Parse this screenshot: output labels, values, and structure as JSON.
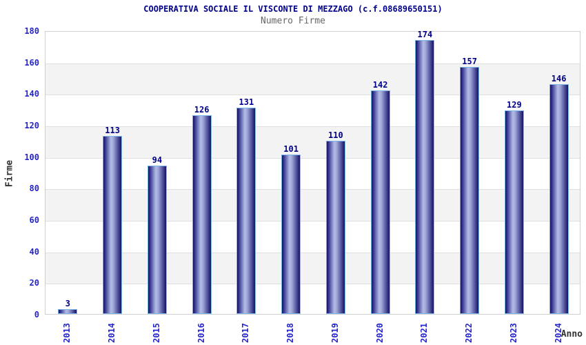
{
  "header": {
    "title": "COOPERATIVA SOCIALE IL VISCONTE DI MEZZAGO (c.f.08689650151)",
    "subtitle": "Numero Firme"
  },
  "chart_data": {
    "type": "bar",
    "title": "COOPERATIVA SOCIALE IL VISCONTE DI MEZZAGO (c.f.08689650151)",
    "subtitle": "Numero Firme",
    "xlabel": "Anno",
    "ylabel": "Firme",
    "categories": [
      "2013",
      "2014",
      "2015",
      "2016",
      "2017",
      "2018",
      "2019",
      "2020",
      "2021",
      "2022",
      "2023",
      "2024"
    ],
    "values": [
      3,
      113,
      94,
      126,
      131,
      101,
      110,
      142,
      174,
      157,
      129,
      146
    ],
    "ylim": [
      0,
      180
    ],
    "ytick_step": 20,
    "grid": "horizontal-bands",
    "legend": "none",
    "colors": {
      "title_text": "#00008b",
      "subtitle_text": "#666666",
      "tick_text": "#2424cd",
      "axis_title_text": "#333333",
      "value_label_text": "#00008b",
      "bar_edge": "#131360",
      "bar_highlight": "#b3bce4",
      "bar_border": "#7db6e8",
      "band_fill": "#f3f3f3",
      "gridline": "#e0e0e0",
      "plot_border": "#cfcfcf",
      "background": "#ffffff"
    }
  }
}
